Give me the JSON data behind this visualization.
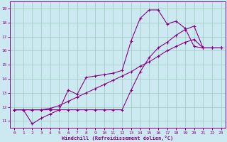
{
  "xlabel": "Windchill (Refroidissement éolien,°C)",
  "bg_color": "#cce8f0",
  "grid_color": "#99ccbb",
  "line_color": "#880088",
  "xlim": [
    -0.5,
    23.5
  ],
  "ylim": [
    10.5,
    19.5
  ],
  "xticks": [
    0,
    1,
    2,
    3,
    4,
    5,
    6,
    7,
    8,
    9,
    10,
    11,
    12,
    13,
    14,
    15,
    16,
    17,
    18,
    19,
    20,
    21,
    22,
    23
  ],
  "yticks": [
    11,
    12,
    13,
    14,
    15,
    16,
    17,
    18,
    19
  ],
  "series": [
    {
      "x": [
        0,
        1,
        2,
        3,
        4,
        5,
        6,
        7,
        8,
        9,
        10,
        11,
        12,
        13,
        14,
        15,
        16,
        17,
        18,
        19,
        20,
        21,
        22,
        23
      ],
      "y": [
        11.8,
        11.8,
        10.8,
        11.2,
        11.5,
        11.8,
        13.2,
        12.9,
        14.1,
        14.2,
        14.3,
        14.4,
        14.6,
        16.7,
        18.3,
        18.9,
        18.9,
        17.9,
        18.1,
        17.6,
        16.3,
        16.2,
        16.2,
        16.2
      ]
    },
    {
      "x": [
        0,
        1,
        2,
        3,
        4,
        5,
        6,
        7,
        8,
        9,
        10,
        11,
        12,
        13,
        14,
        15,
        16,
        17,
        18,
        19,
        20,
        21,
        22,
        23
      ],
      "y": [
        11.8,
        11.8,
        11.8,
        11.8,
        11.8,
        11.8,
        11.8,
        11.8,
        11.8,
        11.8,
        11.8,
        11.8,
        11.8,
        13.2,
        14.5,
        15.5,
        16.2,
        16.6,
        17.1,
        17.5,
        17.75,
        16.2,
        16.2,
        16.2
      ]
    },
    {
      "x": [
        0,
        1,
        2,
        3,
        4,
        5,
        6,
        7,
        8,
        9,
        10,
        11,
        12,
        13,
        14,
        15,
        16,
        17,
        18,
        19,
        20,
        21,
        22,
        23
      ],
      "y": [
        11.8,
        11.8,
        11.8,
        11.8,
        11.9,
        12.1,
        12.4,
        12.7,
        13.0,
        13.3,
        13.6,
        13.9,
        14.2,
        14.5,
        14.9,
        15.2,
        15.6,
        16.0,
        16.3,
        16.6,
        16.8,
        16.2,
        16.2,
        16.2
      ]
    }
  ]
}
